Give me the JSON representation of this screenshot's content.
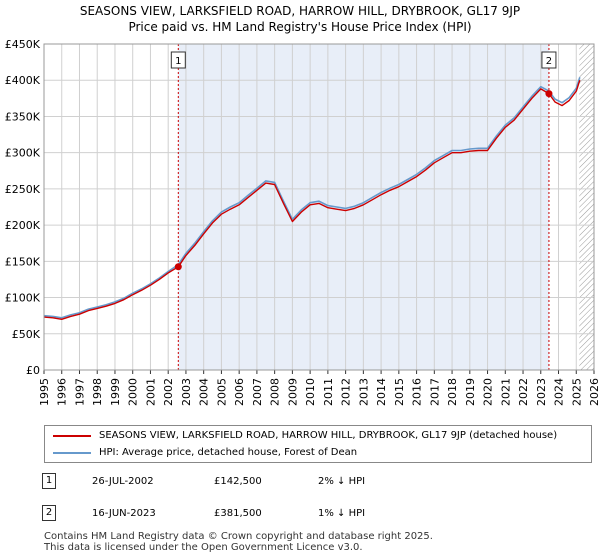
{
  "chart_data": {
    "type": "line",
    "title": "SEASONS VIEW, LARKSFIELD ROAD, HARROW HILL, DRYBROOK, GL17 9JP",
    "subtitle": "Price paid vs. HM Land Registry's House Price Index (HPI)",
    "xlim": [
      1995,
      2026
    ],
    "ylim": [
      0,
      450000
    ],
    "y_ticks": [
      {
        "value": 0,
        "label": "£0"
      },
      {
        "value": 50000,
        "label": "£50K"
      },
      {
        "value": 100000,
        "label": "£100K"
      },
      {
        "value": 150000,
        "label": "£150K"
      },
      {
        "value": 200000,
        "label": "£200K"
      },
      {
        "value": 250000,
        "label": "£250K"
      },
      {
        "value": 300000,
        "label": "£300K"
      },
      {
        "value": 350000,
        "label": "£350K"
      },
      {
        "value": 400000,
        "label": "£400K"
      },
      {
        "value": 450000,
        "label": "£450K"
      }
    ],
    "x_ticks": [
      "1995",
      "1996",
      "1997",
      "1998",
      "1999",
      "2000",
      "2001",
      "2002",
      "2003",
      "2004",
      "2005",
      "2006",
      "2007",
      "2008",
      "2009",
      "2010",
      "2011",
      "2012",
      "2013",
      "2014",
      "2015",
      "2016",
      "2017",
      "2018",
      "2019",
      "2020",
      "2021",
      "2022",
      "2023",
      "2024",
      "2025",
      "2026"
    ],
    "shaded_span": [
      2002.57,
      2023.46
    ],
    "hatched_from": 2025.17,
    "series": [
      {
        "name": "SEASONS VIEW, LARKSFIELD ROAD, HARROW HILL, DRYBROOK, GL17 9JP (detached house)",
        "color": "#cc0000",
        "x": [
          1995.0,
          1995.5,
          1996.0,
          1996.5,
          1997.0,
          1997.5,
          1998.0,
          1998.5,
          1999.0,
          1999.5,
          2000.0,
          2000.5,
          2001.0,
          2001.5,
          2002.0,
          2002.57,
          2003.0,
          2003.5,
          2004.0,
          2004.5,
          2005.0,
          2005.5,
          2006.0,
          2006.5,
          2007.0,
          2007.5,
          2008.0,
          2008.5,
          2009.0,
          2009.5,
          2010.0,
          2010.5,
          2011.0,
          2011.5,
          2012.0,
          2012.5,
          2013.0,
          2013.5,
          2014.0,
          2014.5,
          2015.0,
          2015.5,
          2016.0,
          2016.5,
          2017.0,
          2017.5,
          2018.0,
          2018.5,
          2019.0,
          2019.5,
          2020.0,
          2020.5,
          2021.0,
          2021.5,
          2022.0,
          2022.5,
          2023.0,
          2023.46,
          2023.8,
          2024.2,
          2024.6,
          2025.0,
          2025.2
        ],
        "y": [
          73000,
          72000,
          70000,
          74000,
          77000,
          82000,
          85000,
          88000,
          92000,
          97000,
          104000,
          110000,
          117000,
          125000,
          134000,
          142500,
          158000,
          172000,
          188000,
          203000,
          215000,
          222000,
          228000,
          238000,
          248000,
          258000,
          256000,
          230000,
          205000,
          218000,
          228000,
          230000,
          224000,
          222000,
          220000,
          223000,
          228000,
          235000,
          242000,
          248000,
          253000,
          260000,
          267000,
          276000,
          286000,
          293000,
          300000,
          300000,
          302000,
          303000,
          303000,
          320000,
          335000,
          345000,
          360000,
          375000,
          388000,
          381500,
          370000,
          365000,
          372000,
          385000,
          400000
        ]
      },
      {
        "name": "HPI: Average price, detached house, Forest of Dean",
        "color": "#6699cc",
        "x": [
          1995.0,
          1995.5,
          1996.0,
          1996.5,
          1997.0,
          1997.5,
          1998.0,
          1998.5,
          1999.0,
          1999.5,
          2000.0,
          2000.5,
          2001.0,
          2001.5,
          2002.0,
          2002.57,
          2003.0,
          2003.5,
          2004.0,
          2004.5,
          2005.0,
          2005.5,
          2006.0,
          2006.5,
          2007.0,
          2007.5,
          2008.0,
          2008.5,
          2009.0,
          2009.5,
          2010.0,
          2010.5,
          2011.0,
          2011.5,
          2012.0,
          2012.5,
          2013.0,
          2013.5,
          2014.0,
          2014.5,
          2015.0,
          2015.5,
          2016.0,
          2016.5,
          2017.0,
          2017.5,
          2018.0,
          2018.5,
          2019.0,
          2019.5,
          2020.0,
          2020.5,
          2021.0,
          2021.5,
          2022.0,
          2022.5,
          2023.0,
          2023.46,
          2023.8,
          2024.2,
          2024.6,
          2025.0,
          2025.2
        ],
        "y": [
          75000,
          74000,
          72000,
          76000,
          79000,
          84000,
          87000,
          90000,
          94000,
          99000,
          106000,
          112000,
          119000,
          127000,
          136000,
          145500,
          161000,
          175000,
          191000,
          206000,
          218000,
          225000,
          231000,
          241000,
          251000,
          261000,
          259000,
          233000,
          208000,
          221000,
          231000,
          233000,
          227000,
          225000,
          223000,
          226000,
          231000,
          238000,
          245000,
          251000,
          256000,
          263000,
          270000,
          279000,
          289000,
          296000,
          303000,
          303000,
          305000,
          306000,
          306000,
          323000,
          338000,
          348000,
          363000,
          378000,
          391000,
          385000,
          374000,
          369000,
          376000,
          389000,
          404000
        ]
      }
    ],
    "annotations": [
      {
        "label": "1",
        "x": 2002.57,
        "y": 142500
      },
      {
        "label": "2",
        "x": 2023.46,
        "y": 381500
      }
    ]
  },
  "legend": {
    "items": [
      {
        "label": "SEASONS VIEW, LARKSFIELD ROAD, HARROW HILL, DRYBROOK, GL17 9JP (detached house)",
        "color": "#cc0000"
      },
      {
        "label": "HPI: Average price, detached house, Forest of Dean",
        "color": "#6699cc"
      }
    ]
  },
  "sales": [
    {
      "num": "1",
      "date": "26-JUL-2002",
      "price": "£142,500",
      "hpi": "2% ↓ HPI"
    },
    {
      "num": "2",
      "date": "16-JUN-2023",
      "price": "£381,500",
      "hpi": "1% ↓ HPI"
    }
  ],
  "footer": {
    "line1": "Contains HM Land Registry data © Crown copyright and database right 2025.",
    "line2": "This data is licensed under the Open Government Licence v3.0."
  }
}
